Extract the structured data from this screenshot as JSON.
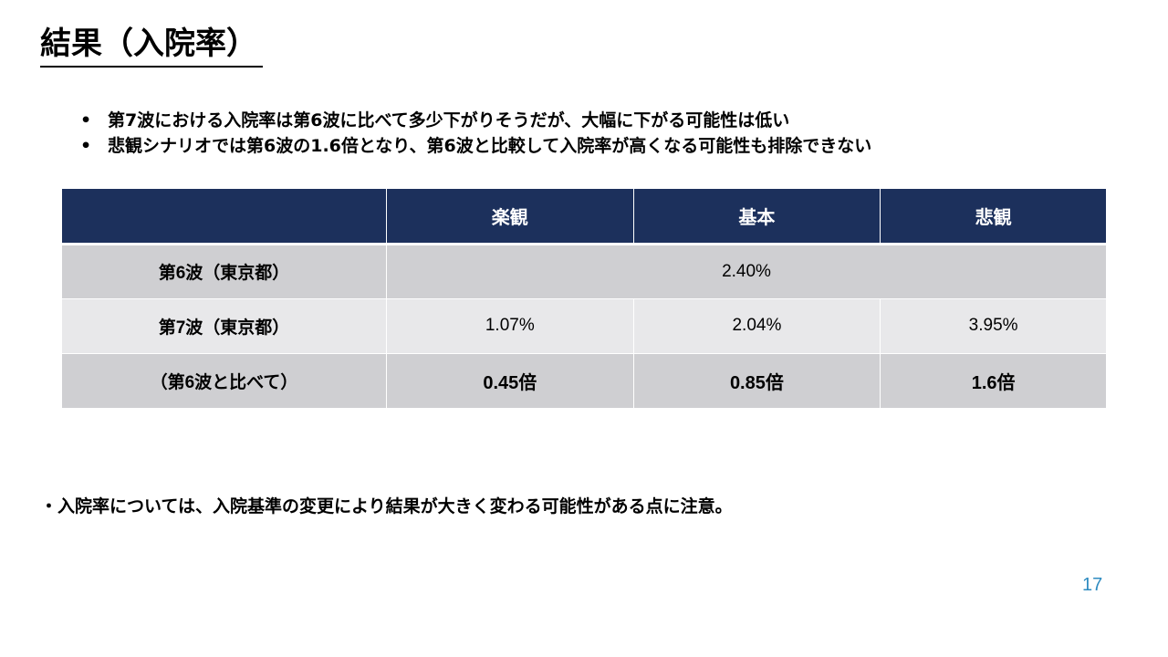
{
  "title": "結果（入院率）",
  "bullets": [
    {
      "marker": "•",
      "text": "第7波における入院率は第6波に比べて多少下がりそうだが、大幅に下がる可能性は低い"
    },
    {
      "marker": "•",
      "text": "悲観シナリオでは第6波の1.6倍となり、第6波と比較して入院率が高くなる可能性も排除できない"
    }
  ],
  "table": {
    "headers": [
      "",
      "楽観",
      "基本",
      "悲観"
    ],
    "rows": [
      {
        "label": "第6波（東京都）",
        "merged_value": "2.40%"
      },
      {
        "label": "第7波（東京都）",
        "values": [
          "1.07%",
          "2.04%",
          "3.95%"
        ]
      },
      {
        "label": "（第6波と比べて）",
        "values": [
          "0.45倍",
          "0.85倍",
          "1.6倍"
        ]
      }
    ]
  },
  "note": "・入院率については、入院基準の変更により結果が大きく変わる可能性がある点に注意。",
  "page_number": "17"
}
